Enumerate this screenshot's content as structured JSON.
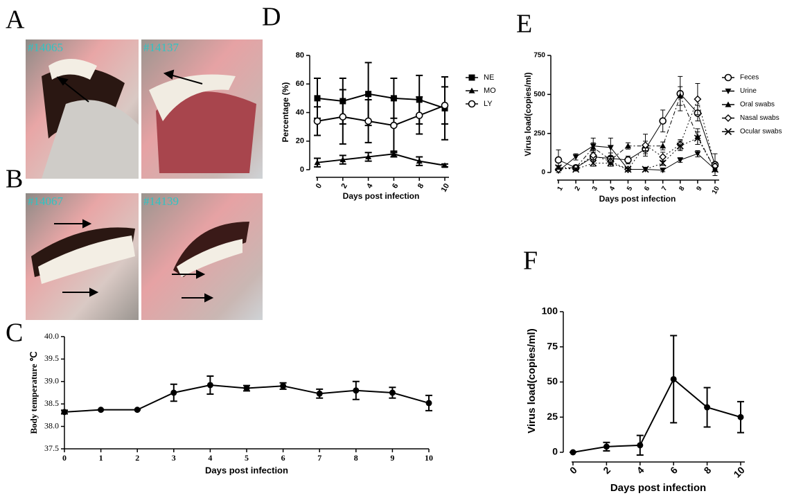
{
  "panel_letters": [
    "A",
    "B",
    "C",
    "D",
    "E",
    "F"
  ],
  "photos": [
    {
      "label": "#14065"
    },
    {
      "label": "#14137"
    },
    {
      "label": "#14067"
    },
    {
      "label": "#14139"
    }
  ],
  "chart_data": [
    {
      "type": "line",
      "y_label": "Body temperature ℃",
      "x_label": "Days post infection",
      "x": [
        0,
        1,
        2,
        3,
        4,
        5,
        6,
        7,
        8,
        9,
        10
      ],
      "xlim": [
        0,
        10
      ],
      "xticks": [
        0,
        1,
        2,
        3,
        4,
        5,
        6,
        7,
        8,
        9,
        10
      ],
      "ylim": [
        37.5,
        40
      ],
      "yticks": [
        {
          "value": 37.5,
          "label": "37.5"
        },
        {
          "value": 38,
          "label": "38.0"
        },
        {
          "value": 38.5,
          "label": "38.5"
        },
        {
          "value": 39,
          "label": "39.0"
        },
        {
          "value": 39.5,
          "label": "39.5"
        },
        {
          "value": 40,
          "label": "40.0"
        }
      ],
      "color": "#000000",
      "marker": "circle",
      "values": [
        38.32,
        38.37,
        38.37,
        38.75,
        38.92,
        38.85,
        38.9,
        38.73,
        38.8,
        38.75,
        38.52
      ],
      "errors": [
        0.04,
        0,
        0,
        0.19,
        0.2,
        0.06,
        0.07,
        0.1,
        0.2,
        0.12,
        0.17
      ]
    },
    {
      "type": "line",
      "y_label": "Percentage (%)",
      "x_label": "Days post infection",
      "x": [
        0,
        2,
        4,
        6,
        8,
        10
      ],
      "xlim": [
        0,
        10
      ],
      "xticks": [
        0,
        2,
        4,
        6,
        8,
        10
      ],
      "ylim": [
        0,
        80
      ],
      "yticks": [
        0,
        20,
        40,
        60,
        80
      ],
      "legend": "right",
      "series": [
        {
          "name": "NE",
          "color": "#000000",
          "marker": "square",
          "line_style": "solid",
          "values": [
            50,
            48,
            53,
            50,
            49,
            43
          ],
          "errors": [
            14,
            16,
            22,
            14,
            17,
            22
          ]
        },
        {
          "name": "MO",
          "color": "#000000",
          "marker": "triangle",
          "line_style": "solid",
          "values": [
            5,
            7,
            9,
            11,
            6,
            3
          ],
          "errors": [
            3,
            3,
            3,
            2,
            3,
            1
          ]
        },
        {
          "name": "LY",
          "color": "#000000",
          "marker": "circle-open",
          "line_style": "solid",
          "values": [
            34,
            37,
            34,
            31,
            38,
            45
          ],
          "errors": [
            10,
            19,
            15,
            19,
            13,
            13
          ]
        }
      ]
    },
    {
      "type": "line",
      "y_label": "Virus load(copies/ml)",
      "x_label": "Days post infection",
      "x": [
        1,
        2,
        3,
        4,
        5,
        6,
        7,
        8,
        9,
        10
      ],
      "xlim": [
        1,
        10
      ],
      "xticks": [
        1,
        2,
        3,
        4,
        5,
        6,
        7,
        8,
        9,
        10
      ],
      "ylim": [
        0,
        750
      ],
      "yticks": [
        0,
        250,
        500,
        750
      ],
      "legend": "right",
      "series": [
        {
          "name": "Feces",
          "color": "#000000",
          "marker": "circle-open",
          "line_style": "solid",
          "values": [
            80,
            30,
            100,
            90,
            80,
            150,
            330,
            505,
            380,
            50
          ],
          "errors": [
            65,
            15,
            30,
            35,
            25,
            30,
            70,
            110,
            50,
            70
          ]
        },
        {
          "name": "Urine",
          "color": "#000000",
          "marker": "triangle-down",
          "line_style": "solid",
          "values": [
            10,
            100,
            170,
            160,
            20,
            20,
            15,
            80,
            120,
            20
          ],
          "errors": [
            10,
            20,
            50,
            60,
            10,
            10,
            10,
            15,
            20,
            10
          ]
        },
        {
          "name": "Oral swabs",
          "color": "#000000",
          "marker": "triangle",
          "line_style": "dash-dot",
          "values": [
            30,
            30,
            160,
            80,
            170,
            170,
            170,
            490,
            230,
            20
          ],
          "errors": [
            15,
            15,
            30,
            25,
            20,
            30,
            25,
            60,
            50,
            15
          ]
        },
        {
          "name": "Nasal swabs",
          "color": "#000000",
          "marker": "diamond-open",
          "line_style": "dotted",
          "values": [
            20,
            30,
            110,
            70,
            20,
            175,
            100,
            180,
            470,
            40
          ],
          "errors": [
            10,
            15,
            30,
            20,
            10,
            70,
            30,
            30,
            100,
            20
          ]
        },
        {
          "name": "Ocular swabs",
          "color": "#000000",
          "marker": "x",
          "line_style": "dotted",
          "values": [
            30,
            20,
            60,
            60,
            20,
            20,
            60,
            170,
            220,
            20
          ],
          "errors": [
            10,
            10,
            20,
            20,
            10,
            10,
            15,
            30,
            40,
            10
          ]
        }
      ]
    },
    {
      "type": "line",
      "y_label": "Virus load(copies/ml)",
      "x_label": "Days post infection",
      "x": [
        0,
        2,
        4,
        6,
        8,
        10
      ],
      "xlim": [
        0,
        10
      ],
      "xticks": [
        0,
        2,
        4,
        6,
        8,
        10
      ],
      "ylim": [
        0,
        100
      ],
      "yticks": [
        0,
        25,
        50,
        75,
        100
      ],
      "color": "#000000",
      "marker": "circle",
      "values": [
        0,
        4,
        5,
        52,
        32,
        25
      ],
      "errors": [
        0,
        3,
        7,
        31,
        14,
        11
      ]
    }
  ]
}
